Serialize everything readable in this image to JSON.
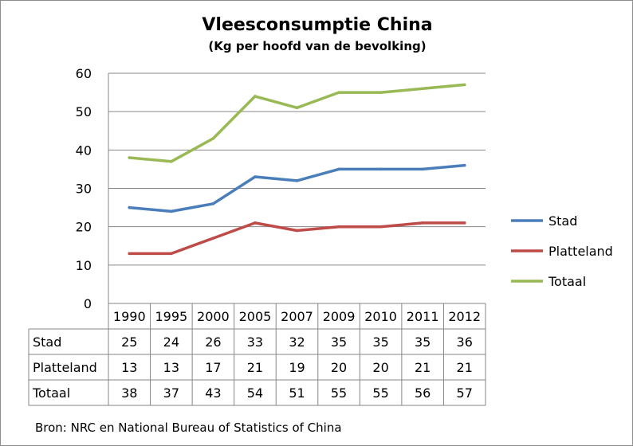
{
  "chart_data": {
    "type": "line",
    "title": "Vleesconsumptie China",
    "subtitle": "(Kg per hoofd van de bevolking)",
    "categories": [
      "1990",
      "1995",
      "2000",
      "2005",
      "2007",
      "2009",
      "2010",
      "2011",
      "2012"
    ],
    "series": [
      {
        "name": "Stad",
        "color": "#4a7ebb",
        "values": [
          25,
          24,
          26,
          33,
          32,
          35,
          35,
          35,
          36
        ]
      },
      {
        "name": "Platteland",
        "color": "#be4b48",
        "values": [
          13,
          13,
          17,
          21,
          19,
          20,
          20,
          21,
          21
        ]
      },
      {
        "name": "Totaal",
        "color": "#98b954",
        "values": [
          38,
          37,
          43,
          54,
          51,
          55,
          55,
          56,
          57
        ]
      }
    ],
    "ylim": [
      0,
      60
    ],
    "yticks": [
      0,
      10,
      20,
      30,
      40,
      50,
      60
    ],
    "grid": true,
    "legend_position": "right",
    "data_table": true,
    "source": "Bron: NRC en National Bureau of Statistics of China"
  }
}
